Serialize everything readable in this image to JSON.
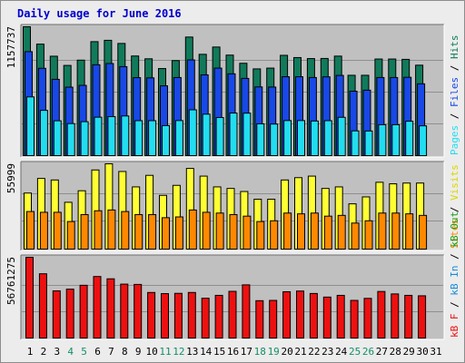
{
  "title": "Daily usage for June 2016",
  "colors": {
    "panel_bg": "#c0c0c0",
    "hits": "#117a5a",
    "files": "#1848e6",
    "pages": "#22ddf0",
    "visits": "#ffff33",
    "sites": "#ff8800",
    "kbf": "#ee1010",
    "kbin": "#1a8ad8",
    "kbout": "#1aa01a",
    "weekend_day": "#138f65",
    "weekday": "#000000"
  },
  "chart_data": [
    {
      "type": "bar",
      "panel": "hits-files-pages",
      "max_label": "1157737",
      "ylim": [
        0,
        1157737
      ],
      "categories": [
        "1",
        "2",
        "3",
        "4",
        "5",
        "6",
        "7",
        "8",
        "9",
        "10",
        "11",
        "12",
        "13",
        "14",
        "15",
        "16",
        "17",
        "18",
        "19",
        "20",
        "21",
        "22",
        "23",
        "24",
        "25",
        "26",
        "27",
        "28",
        "29",
        "30",
        "31"
      ],
      "series": [
        {
          "name": "Hits",
          "color": "#117a5a",
          "values": [
            1157737,
            1003000,
            895000,
            813000,
            860000,
            1025000,
            1037000,
            1009000,
            897000,
            872000,
            785000,
            856000,
            1066000,
            912000,
            977000,
            905000,
            832000,
            782000,
            789000,
            903000,
            883000,
            874000,
            875000,
            896000,
            725000,
            725000,
            870000,
            870000,
            867000,
            815000,
            0
          ]
        },
        {
          "name": "Files",
          "color": "#1848e6",
          "values": [
            936000,
            787000,
            689000,
            619000,
            635000,
            819000,
            830000,
            802000,
            704000,
            702000,
            631000,
            705000,
            862000,
            729000,
            789000,
            738000,
            697000,
            621000,
            620000,
            712000,
            712000,
            705000,
            711000,
            724000,
            583000,
            592000,
            705000,
            705000,
            707000,
            649000,
            0
          ]
        },
        {
          "name": "Pages",
          "color": "#22ddf0",
          "values": [
            532000,
            412000,
            319000,
            294000,
            311000,
            351000,
            356000,
            362000,
            320000,
            320000,
            276000,
            321000,
            417000,
            378000,
            348000,
            388000,
            387000,
            292000,
            290000,
            321000,
            321000,
            317000,
            320000,
            350000,
            229000,
            228000,
            284000,
            284000,
            315000,
            274000,
            0
          ]
        }
      ]
    },
    {
      "type": "bar",
      "panel": "visits-sites",
      "max_label": "55999",
      "ylim": [
        0,
        55999
      ],
      "categories": [
        "1",
        "2",
        "3",
        "4",
        "5",
        "6",
        "7",
        "8",
        "9",
        "10",
        "11",
        "12",
        "13",
        "14",
        "15",
        "16",
        "17",
        "18",
        "19",
        "20",
        "21",
        "22",
        "23",
        "24",
        "25",
        "26",
        "27",
        "28",
        "29",
        "30",
        "31"
      ],
      "series": [
        {
          "name": "Visits",
          "color": "#ffff33",
          "values": [
            37000,
            46500,
            45500,
            31000,
            38500,
            52000,
            55999,
            51000,
            41000,
            48500,
            35500,
            42000,
            53000,
            48000,
            41000,
            40000,
            38000,
            33000,
            33000,
            45500,
            47000,
            48000,
            40000,
            41000,
            30000,
            34500,
            44000,
            43000,
            43500,
            43500,
            0
          ]
        },
        {
          "name": "Sites",
          "color": "#ff8800",
          "values": [
            25000,
            24500,
            24500,
            18500,
            23000,
            25500,
            26000,
            25000,
            23000,
            23000,
            21000,
            21500,
            26000,
            24500,
            24000,
            23000,
            22000,
            18500,
            19000,
            24000,
            23500,
            24000,
            22000,
            22500,
            17500,
            19000,
            24000,
            24000,
            23500,
            22500,
            0
          ]
        }
      ]
    },
    {
      "type": "bar",
      "panel": "kbytes",
      "max_label": "56761275",
      "ylim": [
        0,
        56761275
      ],
      "categories": [
        "1",
        "2",
        "3",
        "4",
        "5",
        "6",
        "7",
        "8",
        "9",
        "10",
        "11",
        "12",
        "13",
        "14",
        "15",
        "16",
        "17",
        "18",
        "19",
        "20",
        "21",
        "22",
        "23",
        "24",
        "25",
        "26",
        "27",
        "28",
        "29",
        "30",
        "31"
      ],
      "series": [
        {
          "name": "KB F",
          "color": "#ee1010",
          "values": [
            56761275,
            45300000,
            33400000,
            34600000,
            37300000,
            43400000,
            41800000,
            38100000,
            37900000,
            32300000,
            31500000,
            31700000,
            32300000,
            28300000,
            30300000,
            33100000,
            37600000,
            26600000,
            26800000,
            32800000,
            33300000,
            31600000,
            29100000,
            30300000,
            26800000,
            28200000,
            33000000,
            31300000,
            30300000,
            30000000,
            0
          ]
        }
      ]
    }
  ],
  "legend": {
    "panel1": [
      {
        "text": "Pages",
        "color": "#22ddf0"
      },
      {
        "text": " / ",
        "color": "#000000"
      },
      {
        "text": "Files",
        "color": "#1848e6"
      },
      {
        "text": " / ",
        "color": "#000000"
      },
      {
        "text": "Hits",
        "color": "#117a5a"
      }
    ],
    "panel2": [
      {
        "text": "Sites",
        "color": "#ff8800"
      },
      {
        "text": " / ",
        "color": "#000000"
      },
      {
        "text": "Visits",
        "color": "#d8d800"
      }
    ],
    "panel3": [
      {
        "text": "kB F",
        "color": "#ee1010"
      },
      {
        "text": " / ",
        "color": "#000000"
      },
      {
        "text": "kB In",
        "color": "#1a8ad8"
      },
      {
        "text": " / ",
        "color": "#000000"
      },
      {
        "text": "kB Out",
        "color": "#1aa01a"
      }
    ]
  },
  "x_ticks": [
    {
      "label": "1",
      "weekend": false
    },
    {
      "label": "2",
      "weekend": false
    },
    {
      "label": "3",
      "weekend": false
    },
    {
      "label": "4",
      "weekend": true
    },
    {
      "label": "5",
      "weekend": true
    },
    {
      "label": "6",
      "weekend": false
    },
    {
      "label": "7",
      "weekend": false
    },
    {
      "label": "8",
      "weekend": false
    },
    {
      "label": "9",
      "weekend": false
    },
    {
      "label": "10",
      "weekend": false
    },
    {
      "label": "11",
      "weekend": true
    },
    {
      "label": "12",
      "weekend": true
    },
    {
      "label": "13",
      "weekend": false
    },
    {
      "label": "14",
      "weekend": false
    },
    {
      "label": "15",
      "weekend": false
    },
    {
      "label": "16",
      "weekend": false
    },
    {
      "label": "17",
      "weekend": false
    },
    {
      "label": "18",
      "weekend": true
    },
    {
      "label": "19",
      "weekend": true
    },
    {
      "label": "20",
      "weekend": false
    },
    {
      "label": "21",
      "weekend": false
    },
    {
      "label": "22",
      "weekend": false
    },
    {
      "label": "23",
      "weekend": false
    },
    {
      "label": "24",
      "weekend": false
    },
    {
      "label": "25",
      "weekend": true
    },
    {
      "label": "26",
      "weekend": true
    },
    {
      "label": "27",
      "weekend": false
    },
    {
      "label": "28",
      "weekend": false
    },
    {
      "label": "29",
      "weekend": false
    },
    {
      "label": "30",
      "weekend": false
    },
    {
      "label": "31",
      "weekend": false
    }
  ]
}
